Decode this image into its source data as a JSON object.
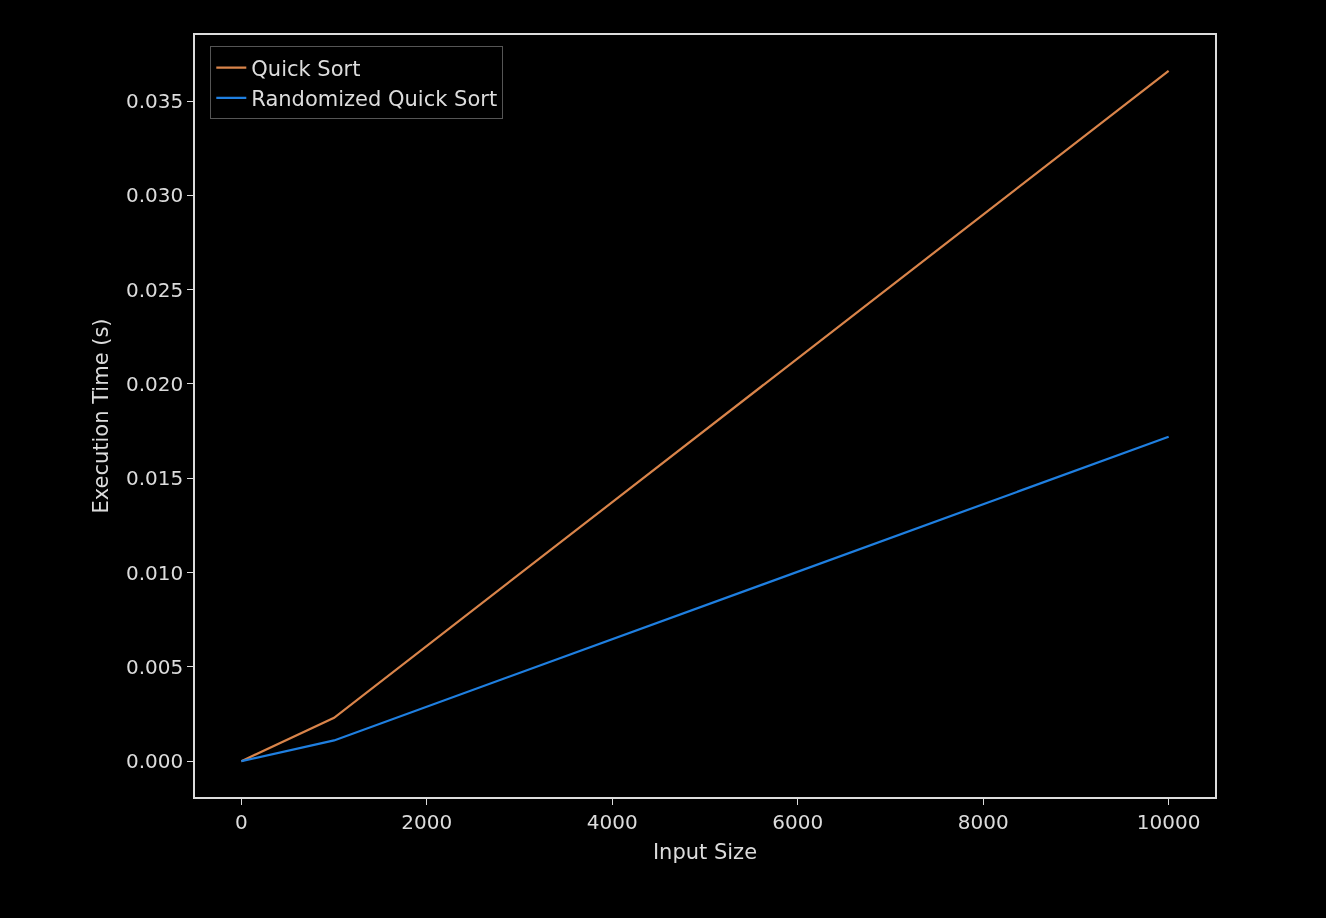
{
  "chart_data": {
    "type": "line",
    "xlabel": "Input Size",
    "ylabel": "Execution Time (s)",
    "x": [
      0,
      1000,
      10000
    ],
    "series": [
      {
        "name": "Quick Sort",
        "color": "#d9844a",
        "values": [
          0,
          0.0023,
          0.0366
        ]
      },
      {
        "name": "Randomized Quick Sort",
        "color": "#1f7fe0",
        "values": [
          0,
          0.0011,
          0.0172
        ]
      }
    ],
    "xlim": [
      -500,
      10500
    ],
    "xticks": [
      0,
      2000,
      4000,
      6000,
      8000,
      10000
    ],
    "ylim": [
      -0.0019,
      0.0385
    ],
    "yticks": [
      {
        "value": 0,
        "label": "0.000"
      },
      {
        "value": 0.005,
        "label": "0.005"
      },
      {
        "value": 0.01,
        "label": "0.010"
      },
      {
        "value": 0.015,
        "label": "0.015"
      },
      {
        "value": 0.02,
        "label": "0.020"
      },
      {
        "value": 0.025,
        "label": "0.025"
      },
      {
        "value": 0.03,
        "label": "0.030"
      },
      {
        "value": 0.035,
        "label": "0.035"
      }
    ],
    "grid": false,
    "legend": "top left",
    "marker": "none",
    "line_style": "solid"
  }
}
